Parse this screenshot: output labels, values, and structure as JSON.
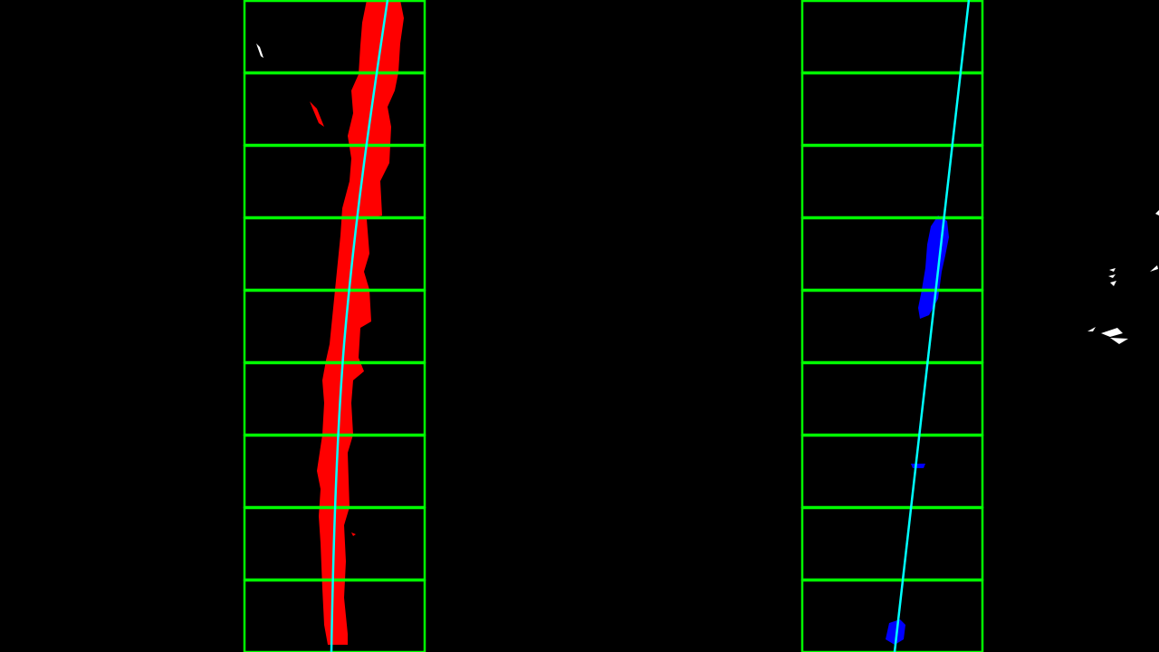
{
  "scene": {
    "description_name": "lane-detection-sliding-window-visualization",
    "colors": {
      "background": "#000000",
      "window": "#00ff00",
      "left_lane_pixels": "#ff0000",
      "right_lane_pixels": "#0000ff",
      "fit_line": "#00ffff",
      "noise_pixels": "#ffffff"
    },
    "window_count": 9,
    "lanes": [
      {
        "name": "left",
        "window_count": 9
      },
      {
        "name": "right",
        "window_count": 9
      }
    ]
  }
}
